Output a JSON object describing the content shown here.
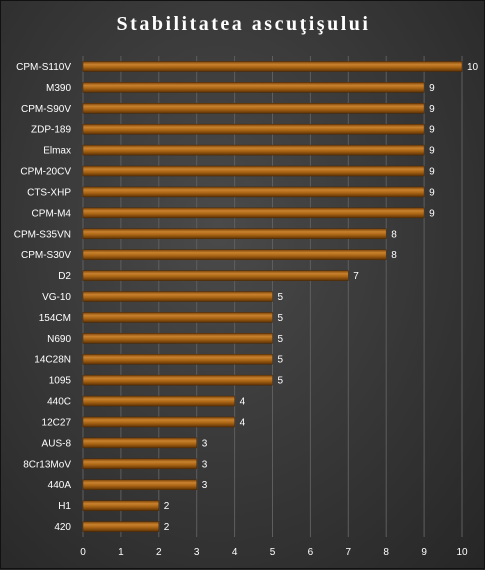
{
  "chart_data": {
    "type": "bar",
    "orientation": "horizontal",
    "title": "Stabilitatea ascuţişului",
    "categories": [
      "CPM-S110V",
      "M390",
      "CPM-S90V",
      "ZDP-189",
      "Elmax",
      "CPM-20CV",
      "CTS-XHP",
      "CPM-M4",
      "CPM-S35VN",
      "CPM-S30V",
      "D2",
      "VG-10",
      "154CM",
      "N690",
      "14C28N",
      "1095",
      "440C",
      "12C27",
      "AUS-8",
      "8Cr13MoV",
      "440A",
      "H1",
      "420"
    ],
    "values": [
      10,
      9,
      9,
      9,
      9,
      9,
      9,
      9,
      8,
      8,
      7,
      5,
      5,
      5,
      5,
      5,
      4,
      4,
      3,
      3,
      3,
      2,
      2
    ],
    "xlim": [
      0,
      10
    ],
    "xticks": [
      0,
      1,
      2,
      3,
      4,
      5,
      6,
      7,
      8,
      9,
      10
    ],
    "grid": true,
    "data_labels": true,
    "bar_color": "#9a5a0c",
    "bar_highlight": "#c9822e"
  }
}
